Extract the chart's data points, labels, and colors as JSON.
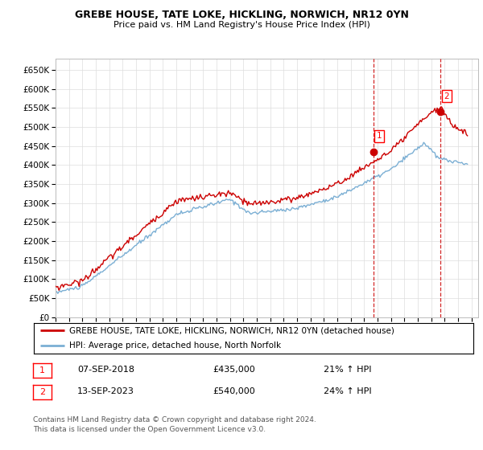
{
  "title": "GREBE HOUSE, TATE LOKE, HICKLING, NORWICH, NR12 0YN",
  "subtitle": "Price paid vs. HM Land Registry's House Price Index (HPI)",
  "ytick_values": [
    0,
    50000,
    100000,
    150000,
    200000,
    250000,
    300000,
    350000,
    400000,
    450000,
    500000,
    550000,
    600000,
    650000
  ],
  "ylim": [
    0,
    680000
  ],
  "xlim_start": 1995.0,
  "xlim_end": 2026.5,
  "purchase1_x": 2018.69,
  "purchase1_y": 435000,
  "purchase2_x": 2023.71,
  "purchase2_y": 540000,
  "legend_line1": "GREBE HOUSE, TATE LOKE, HICKLING, NORWICH, NR12 0YN (detached house)",
  "legend_line2": "HPI: Average price, detached house, North Norfolk",
  "annotation1_date": "07-SEP-2018",
  "annotation1_price": "£435,000",
  "annotation1_hpi": "21% ↑ HPI",
  "annotation2_date": "13-SEP-2023",
  "annotation2_price": "£540,000",
  "annotation2_hpi": "24% ↑ HPI",
  "footer": "Contains HM Land Registry data © Crown copyright and database right 2024.\nThis data is licensed under the Open Government Licence v3.0.",
  "line1_color": "#cc0000",
  "line2_color": "#7bafd4",
  "vline_color": "#cc0000",
  "grid_color": "#dddddd"
}
